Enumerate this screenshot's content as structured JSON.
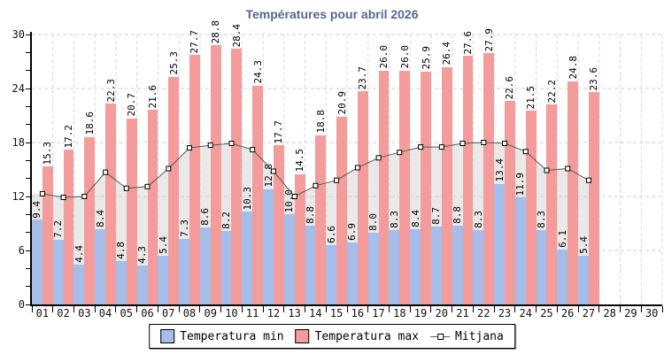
{
  "chart_data": {
    "type": "bar",
    "title": "Températures pour abril 2026",
    "categories": [
      "01",
      "02",
      "03",
      "04",
      "05",
      "06",
      "07",
      "08",
      "09",
      "10",
      "11",
      "12",
      "13",
      "14",
      "15",
      "16",
      "17",
      "18",
      "19",
      "20",
      "21",
      "22",
      "23",
      "24",
      "25",
      "26",
      "27",
      "28",
      "29",
      "30"
    ],
    "series": [
      {
        "name": "Temperatura min",
        "type": "bar",
        "color": "#A4BDE9",
        "values": [
          9.4,
          7.2,
          4.4,
          8.4,
          4.8,
          4.3,
          5.4,
          7.3,
          8.6,
          8.2,
          10.3,
          12.8,
          10.0,
          8.8,
          6.6,
          6.9,
          8.0,
          8.3,
          8.4,
          8.7,
          8.8,
          8.3,
          13.4,
          11.9,
          8.3,
          6.1,
          5.4,
          null,
          null,
          null
        ]
      },
      {
        "name": "Temperatura max",
        "type": "bar",
        "color": "#F49B9B",
        "values": [
          15.3,
          17.2,
          18.6,
          22.3,
          20.7,
          21.6,
          25.3,
          27.7,
          28.8,
          28.4,
          24.3,
          17.7,
          14.5,
          18.8,
          20.9,
          23.7,
          26.0,
          26.0,
          25.9,
          26.4,
          27.6,
          27.9,
          22.6,
          21.5,
          22.2,
          24.8,
          23.6,
          null,
          null,
          null
        ]
      },
      {
        "name": "Mitjana",
        "type": "line",
        "color": "#5A5A5A",
        "marker": "square",
        "area_color": "#E9E9E9",
        "values": [
          12.3,
          11.9,
          12.0,
          14.7,
          12.9,
          13.1,
          15.1,
          17.4,
          17.7,
          17.9,
          17.2,
          14.8,
          12.0,
          13.2,
          13.8,
          15.2,
          16.3,
          16.9,
          17.5,
          17.5,
          17.9,
          18.0,
          17.9,
          17.0,
          14.9,
          15.1,
          13.8,
          null,
          null,
          null
        ]
      }
    ],
    "xlabel": "",
    "ylabel": "",
    "ylim": [
      0,
      30
    ],
    "yticks": [
      0,
      6,
      12,
      18,
      24,
      30
    ],
    "minor_ytick_step": 2,
    "grid": "dashed",
    "legend_position": "bottom",
    "bar_label_format": "one-decimal",
    "colors": {
      "h_grid": "#CCCCCC",
      "v_grid": "#D8D8D8",
      "axis": "#000000",
      "title": "#55688F",
      "bar_label": "#000000"
    }
  }
}
